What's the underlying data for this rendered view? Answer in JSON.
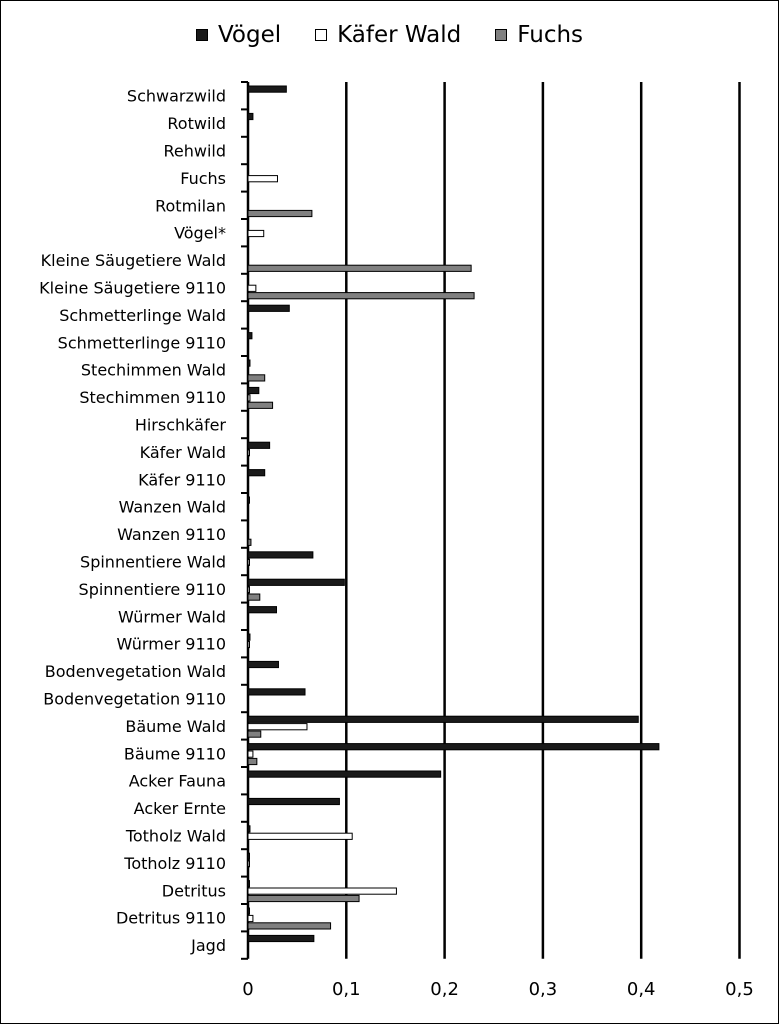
{
  "chart_data": {
    "type": "bar",
    "orientation": "horizontal",
    "categories": [
      "Schwarzwild",
      "Rotwild",
      "Rehwild",
      "Fuchs",
      "Rotmilan",
      "Vögel*",
      "Kleine Säugetiere Wald",
      "Kleine Säugetiere 9110",
      "Schmetterlinge Wald",
      "Schmetterlinge 9110",
      "Stechimmen Wald",
      "Stechimmen 9110",
      "Hirschkäfer",
      "Käfer Wald",
      "Käfer 9110",
      "Wanzen Wald",
      "Wanzen 9110",
      "Spinnentiere Wald",
      "Spinnentiere 9110",
      "Würmer Wald",
      "Würmer 9110",
      "Bodenvegetation Wald",
      "Bodenvegetation 9110",
      "Bäume Wald",
      "Bäume 9110",
      "Acker Fauna",
      "Acker Ernte",
      "Totholz Wald",
      "Totholz 9110",
      "Detritus",
      "Detritus 9110",
      "Jagd"
    ],
    "series": [
      {
        "name": "Vögel",
        "color": "#1a1a1a",
        "values": [
          0.039,
          0.005,
          0,
          0,
          0,
          0,
          0,
          0,
          0.042,
          0.004,
          0.002,
          0.011,
          0,
          0.022,
          0.017,
          0.001,
          0,
          0.066,
          0.098,
          0.029,
          0.002,
          0.031,
          0.058,
          0.397,
          0.418,
          0.196,
          0.093,
          0.002,
          0.001,
          0.001,
          0.001,
          0.067
        ]
      },
      {
        "name": "Käfer Wald",
        "color": "#ffffff",
        "values": [
          0,
          0,
          0,
          0.03,
          0,
          0.016,
          0,
          0.008,
          0,
          0,
          0,
          0.002,
          0,
          0.001,
          0,
          0,
          0,
          0.001,
          0.001,
          0,
          0.001,
          0,
          0,
          0.06,
          0.005,
          0,
          0,
          0.106,
          0.001,
          0.151,
          0.005,
          0
        ]
      },
      {
        "name": "Fuchs",
        "color": "#808080",
        "values": [
          0,
          0,
          0,
          0,
          0.065,
          0,
          0.227,
          0.23,
          0,
          0,
          0.017,
          0.025,
          0,
          0,
          0,
          0,
          0.003,
          0,
          0.012,
          0,
          0,
          0,
          0,
          0.013,
          0.009,
          0,
          0,
          0,
          0,
          0.113,
          0.084,
          0
        ]
      }
    ],
    "x_ticks": [
      "0",
      "0,1",
      "0,2",
      "0,3",
      "0,4",
      "0,5"
    ],
    "xlim": [
      0,
      0.5
    ],
    "grid": "vertical",
    "legend": "top-center"
  }
}
